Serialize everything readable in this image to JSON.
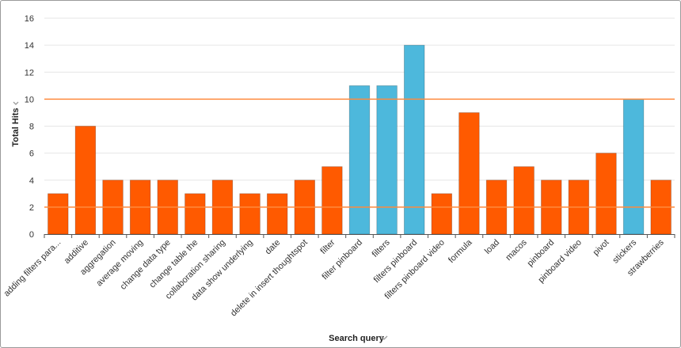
{
  "chart_data": {
    "type": "bar",
    "xlabel": "Search query",
    "ylabel": "Total Hits",
    "ylim": [
      0,
      16
    ],
    "yticks": [
      0,
      2,
      4,
      6,
      8,
      10,
      12,
      14,
      16
    ],
    "grid": true,
    "categories": [
      "adding filters para...",
      "additive",
      "aggregation",
      "average moving",
      "change data type",
      "change table the",
      "collaboration sharing",
      "data show underlying",
      "date",
      "delete in insert thoughtspot",
      "filter",
      "filter pinboard",
      "filters",
      "filters pinboard",
      "filters pinboard video",
      "formula",
      "load",
      "macos",
      "pinboard",
      "pinboard video",
      "pivot",
      "stickers",
      "strawberries"
    ],
    "values": [
      3,
      8,
      4,
      4,
      4,
      3,
      4,
      3,
      3,
      4,
      5,
      11,
      11,
      14,
      3,
      9,
      4,
      5,
      4,
      4,
      6,
      10,
      4
    ],
    "reference_lines": [
      10,
      2
    ],
    "colors": {
      "below": "#ff5a00",
      "above": "#4db8dc",
      "reference_line": "#ff8a3d",
      "grid": "#e6e6e6",
      "axis": "#555555"
    },
    "color_rule": "values at or above the upper reference line use the 'above' color"
  }
}
